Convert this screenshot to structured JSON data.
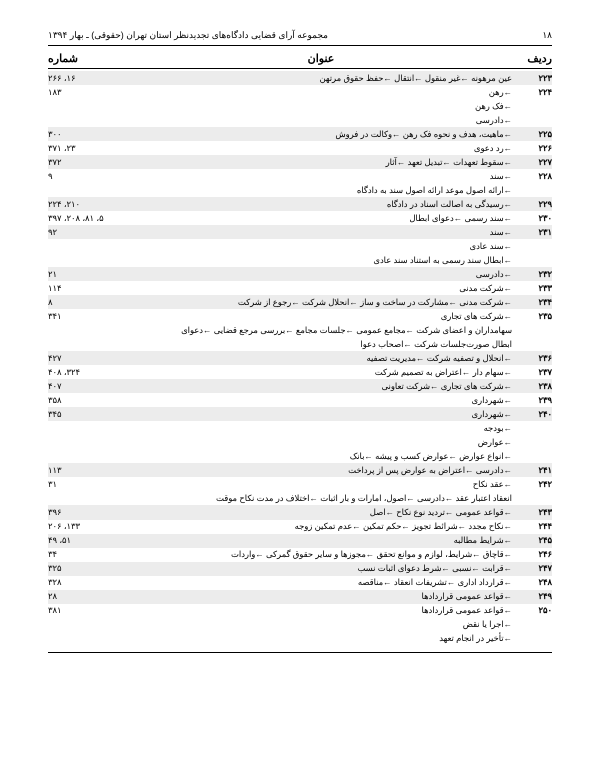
{
  "header": {
    "title": "مجموعه آرای قضایی دادگاه‌های تجدیدنظر استان تهران (حقوقی) ـ بهار ۱۳۹۴",
    "page_no": "۱۸"
  },
  "columns": {
    "row": "ردیف",
    "title": "عنوان",
    "page": "شماره"
  },
  "rows": [
    {
      "n": "۲۲۳",
      "t": "عین مرهونه ←غیر منقول ←انتقال ←حفظ حقوق مرتهن",
      "p": "۲۶۶ ،۱۶",
      "alt": true
    },
    {
      "n": "۲۲۴",
      "t": "←رهن",
      "p": "۱۸۳",
      "alt": false
    },
    {
      "n": "",
      "t": "←فک رهن",
      "p": "",
      "alt": false,
      "sub": true
    },
    {
      "n": "",
      "t": "←دادرسی",
      "p": "",
      "alt": false,
      "sub": true
    },
    {
      "n": "۲۲۵",
      "t": "←ماهیت، هدف و نحوه فک رهن ←وکالت در فروش",
      "p": "۳۰۰",
      "alt": true
    },
    {
      "n": "۲۲۶",
      "t": "←رد دعوی",
      "p": "۳۷۱ ،۲۳",
      "alt": false
    },
    {
      "n": "۲۲۷",
      "t": "←سقوط تعهدات ←تبدیل تعهد ←آثار",
      "p": "۳۷۲",
      "alt": true
    },
    {
      "n": "۲۲۸",
      "t": "←سند",
      "p": "۹",
      "alt": false
    },
    {
      "n": "",
      "t": "←ارائه اصول موعد ارائه اصول سند به دادگاه",
      "p": "",
      "alt": false,
      "sub": true
    },
    {
      "n": "۲۲۹",
      "t": "←رسیدگی به اصالت اسناد در دادگاه",
      "p": "۲۲۴ ،۲۱۰",
      "alt": true
    },
    {
      "n": "۲۳۰",
      "t": "←سند رسمی ←دعوای ابطال",
      "p": "۳۹۷ ،۲۰۸ ،۸۱ ،۵",
      "alt": false
    },
    {
      "n": "۲۳۱",
      "t": "←سند",
      "p": "۹۲",
      "alt": true
    },
    {
      "n": "",
      "t": "←سند عادی",
      "p": "",
      "alt": false,
      "sub": true
    },
    {
      "n": "",
      "t": "←ابطال سند رسمی به استناد سند عادی",
      "p": "",
      "alt": false,
      "sub": true
    },
    {
      "n": "۲۳۲",
      "t": "←دادرسی",
      "p": "۲۱",
      "alt": true
    },
    {
      "n": "۲۳۳",
      "t": "←شرکت مدنی",
      "p": "۱۱۴",
      "alt": false
    },
    {
      "n": "۲۳۴",
      "t": "←شرکت مدنی ←مشارکت در ساخت و ساز ←انحلال شرکت ←رجوع از شرکت",
      "p": "۸",
      "alt": true
    },
    {
      "n": "۲۳۵",
      "t": "←شرکت های تجاری",
      "p": "۳۴۱",
      "alt": false
    },
    {
      "n": "",
      "t": "سهامداران و اعضای شرکت ←مجامع عمومی ←جلسات مجامع ←بررسی مرجع قضایی ←دعوای",
      "p": "",
      "alt": false,
      "sub": true
    },
    {
      "n": "",
      "t": "ابطال صورت‌جلسات شرکت ←اصحاب دعوا",
      "p": "",
      "alt": false,
      "sub": true
    },
    {
      "n": "۲۳۶",
      "t": "←انحلال و تصفیه شرکت ←مدیریت تصفیه",
      "p": "۴۲۷",
      "alt": true
    },
    {
      "n": "۲۳۷",
      "t": "←سهام دار ←اعتراض به تصمیم شرکت",
      "p": "۴۰۸ ،۳۲۴",
      "alt": false
    },
    {
      "n": "۲۳۸",
      "t": "←شرکت های تجاری ←شرکت تعاونی",
      "p": "۴۰۷",
      "alt": true
    },
    {
      "n": "۲۳۹",
      "t": "←شهرداری",
      "p": "۳۵۸",
      "alt": false
    },
    {
      "n": "۲۴۰",
      "t": "←شهرداری",
      "p": "۳۴۵",
      "alt": true
    },
    {
      "n": "",
      "t": "←بودجه",
      "p": "",
      "alt": false,
      "sub": true
    },
    {
      "n": "",
      "t": "←عوارض",
      "p": "",
      "alt": false,
      "sub": true
    },
    {
      "n": "",
      "t": "←انواع عوارض ←عوارض کسب و پیشه ←بانک",
      "p": "",
      "alt": false,
      "sub": true
    },
    {
      "n": "۲۴۱",
      "t": "←دادرسی ←اعتراض به عوارض پس از پرداخت",
      "p": "۱۱۳",
      "alt": true
    },
    {
      "n": "۲۴۲",
      "t": "←عقد نکاح",
      "p": "۳۱",
      "alt": false
    },
    {
      "n": "",
      "t": "انعقاد اعتبار عقد ←دادرسی ←اصول، امارات و بار اثبات ←اختلاف در مدت نکاح موقت",
      "p": "",
      "alt": false,
      "sub": true
    },
    {
      "n": "۲۴۳",
      "t": "←قواعد عمومی ←تردید نوع نکاح ←اصل",
      "p": "۳۹۶",
      "alt": true
    },
    {
      "n": "۲۴۴",
      "t": "←نکاح مجدد ←شرائط تجویز ←حکم تمکین ←عدم تمکین زوجه",
      "p": "۲۰۶ ،۱۳۳",
      "alt": false
    },
    {
      "n": "۲۴۵",
      "t": "←شرایط مطالبه",
      "p": "۴۹ ،۵۱",
      "alt": true
    },
    {
      "n": "۲۴۶",
      "t": "←قاچاق ←شرایط، لوازم و موانع تحقق ←مجوزها و سایر حقوق گمرکی ←واردات",
      "p": "۳۴",
      "alt": false
    },
    {
      "n": "۲۴۷",
      "t": "←قرابت ←نسبی ←شرط دعوای اثبات نسب",
      "p": "۳۲۵",
      "alt": true
    },
    {
      "n": "۲۴۸",
      "t": "←قرارداد اداری ←تشریفات انعقاد ←مناقصه",
      "p": "۳۲۸",
      "alt": false
    },
    {
      "n": "۲۴۹",
      "t": "←قواعد عمومی قراردادها",
      "p": "۲۸",
      "alt": true
    },
    {
      "n": "۲۵۰",
      "t": "←قواعد عمومی قراردادها",
      "p": "۳۸۱",
      "alt": false
    },
    {
      "n": "",
      "t": "←اجرا یا نقض",
      "p": "",
      "alt": false,
      "sub": true
    },
    {
      "n": "",
      "t": "←تأخیر در انجام تعهد",
      "p": "",
      "alt": false,
      "sub": true
    }
  ]
}
